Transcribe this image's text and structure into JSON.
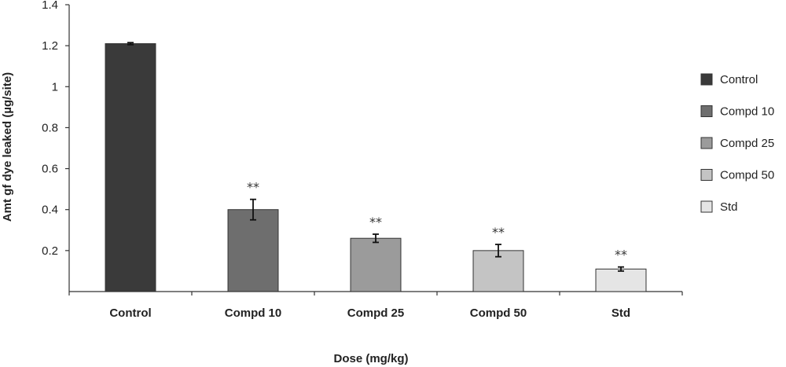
{
  "chart_data": {
    "type": "bar",
    "categories": [
      "Control",
      "Compd 10",
      "Compd 25",
      "Compd 50",
      "Std"
    ],
    "values": [
      1.21,
      0.4,
      0.26,
      0.2,
      0.11
    ],
    "errors": [
      0.005,
      0.05,
      0.02,
      0.03,
      0.01
    ],
    "significance": [
      "",
      "**",
      "**",
      "**",
      "**"
    ],
    "colors": [
      "#3a3a3a",
      "#6e6e6e",
      "#9b9b9b",
      "#c4c4c4",
      "#e5e5e5"
    ],
    "xlabel": "Dose (mg/kg)",
    "ylabel": "Amt gf dye leaked (µg/site)",
    "ylim": [
      0,
      1.4
    ],
    "yticks": [
      0.2,
      0.4,
      0.6,
      0.8,
      1,
      1.2,
      1.4
    ],
    "ytick_labels": [
      "0.2",
      "0.4",
      "0.6",
      "0.8",
      "1",
      "1.2",
      "1.4"
    ],
    "legend": {
      "position": "right",
      "entries": [
        "Control",
        "Compd 10",
        "Compd 25",
        "Compd 50",
        "Std"
      ]
    },
    "grid": false
  }
}
